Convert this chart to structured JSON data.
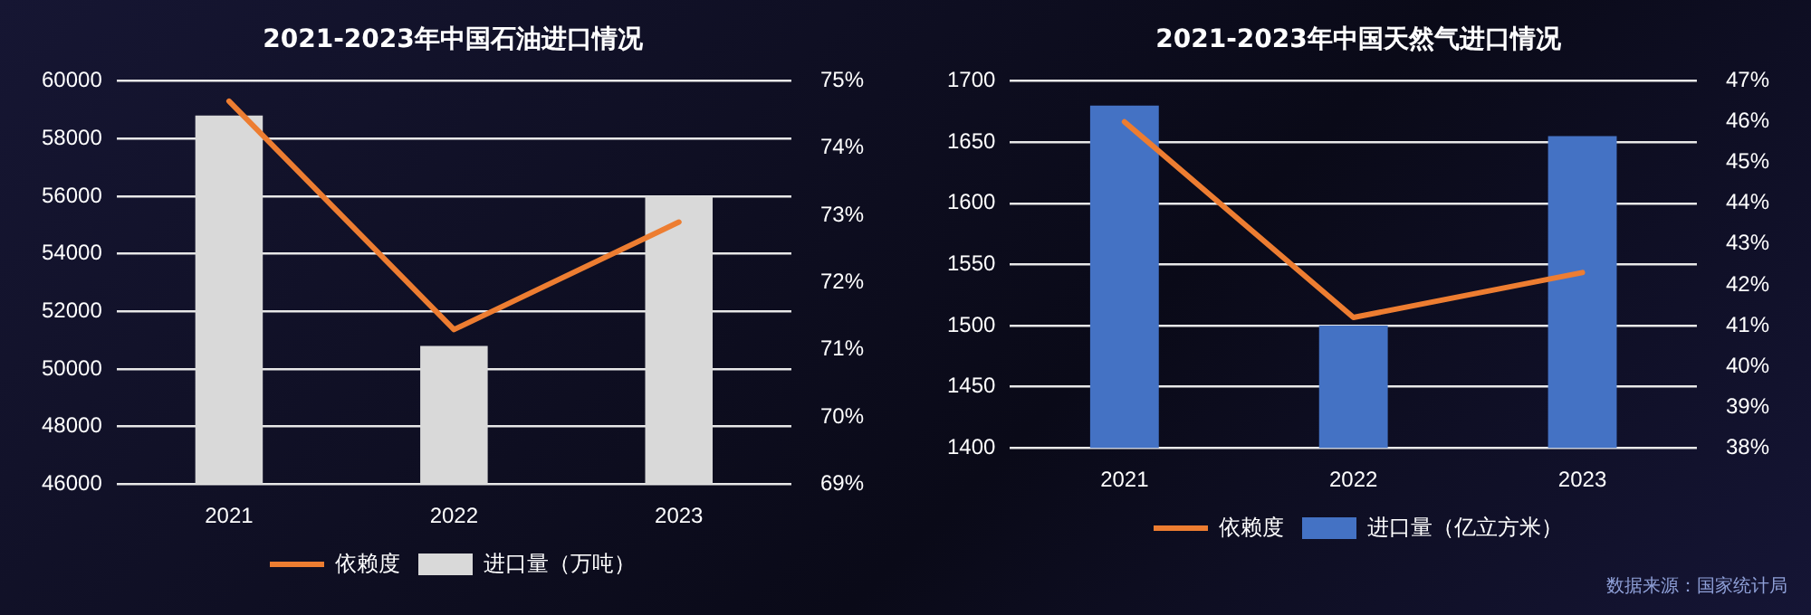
{
  "chart_data": [
    {
      "type": "bar",
      "title": "2021-2023年中国石油进口情况",
      "categories": [
        "2021",
        "2022",
        "2023"
      ],
      "series": [
        {
          "name": "进口量（万吨）",
          "color": "#d9d9d9",
          "values": [
            58800,
            50800,
            56000
          ]
        },
        {
          "type": "line",
          "name": "依赖度",
          "color": "#ed7d31",
          "axis": "y2",
          "values": [
            74.7,
            71.3,
            72.9
          ]
        }
      ],
      "ylim": [
        46000,
        60000
      ],
      "yticks": [
        46000,
        48000,
        50000,
        52000,
        54000,
        56000,
        58000,
        60000
      ],
      "y2lim": [
        69,
        75
      ],
      "y2ticks": [
        {
          "value": 69,
          "label": "69%"
        },
        {
          "value": 70,
          "label": "70%"
        },
        {
          "value": 71,
          "label": "71%"
        },
        {
          "value": 72,
          "label": "72%"
        },
        {
          "value": 73,
          "label": "73%"
        },
        {
          "value": 74,
          "label": "74%"
        },
        {
          "value": 75,
          "label": "75%"
        }
      ],
      "grid": "y",
      "legend": "bottom",
      "marker": "none"
    },
    {
      "type": "bar",
      "title": "2021-2023年中国天然气进口情况",
      "categories": [
        "2021",
        "2022",
        "2023"
      ],
      "series": [
        {
          "name": "进口量（亿立方米）",
          "color": "#4472c4",
          "values": [
            1680,
            1500,
            1655
          ]
        },
        {
          "type": "line",
          "name": "依赖度",
          "color": "#ed7d31",
          "axis": "y2",
          "values": [
            46.0,
            41.2,
            42.3
          ]
        }
      ],
      "ylim": [
        1400,
        1700
      ],
      "yticks": [
        1400,
        1450,
        1500,
        1550,
        1600,
        1650,
        1700
      ],
      "y2lim": [
        38,
        47
      ],
      "y2ticks": [
        {
          "value": 38,
          "label": "38%"
        },
        {
          "value": 39,
          "label": "39%"
        },
        {
          "value": 40,
          "label": "40%"
        },
        {
          "value": 41,
          "label": "41%"
        },
        {
          "value": 42,
          "label": "42%"
        },
        {
          "value": 43,
          "label": "43%"
        },
        {
          "value": 44,
          "label": "44%"
        },
        {
          "value": 45,
          "label": "45%"
        },
        {
          "value": 46,
          "label": "46%"
        },
        {
          "value": 47,
          "label": "47%"
        }
      ],
      "grid": "y",
      "legend": "bottom",
      "marker": "none",
      "annotations": [
        "数据来源：国家统计局"
      ]
    }
  ]
}
